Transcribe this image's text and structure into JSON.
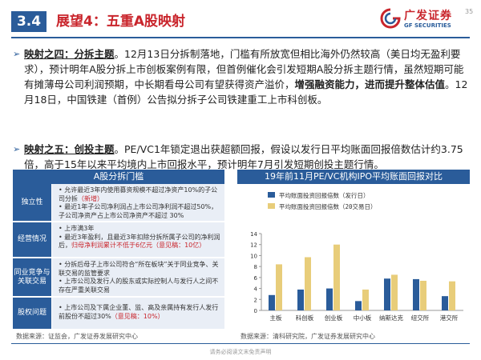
{
  "header": {
    "section_number": "3.4",
    "title": "展望4：五重A股映射",
    "logo_cn": "广发证券",
    "logo_en": "GF SECURITIES",
    "page_number": "35"
  },
  "paragraphs": [
    {
      "heading": "映射之四：分拆主题",
      "segments": [
        {
          "t": "。12月13日分拆制落地，门槛有所放宽但相比海外仍然较高（美日均无盈利要求），预计明年A股分拆上市创板案例有限，但首例催化会引发短期A股分拆主题行情，虽然短期可能有摊薄母公司利润预期，中长期看母公司有望获得资产溢价，",
          "b": false
        },
        {
          "t": "增强融资能力，进而提升整体估值",
          "b": true
        },
        {
          "t": "。12月18日，中国铁建（首例）公告拟分拆子公司铁建重工上市科创板。",
          "b": false
        }
      ]
    },
    {
      "heading": "映射之五：创投主题",
      "segments": [
        {
          "t": "。PE/VC1年锁定退出获超额回报，假设以发行日平均账面回报倍数估计约3.75倍，高于15年以来平均境内上市回报水平，预计明年7月引发短期创投主题行情。",
          "b": false
        }
      ]
    }
  ],
  "table": {
    "title": "A股分拆门槛",
    "rows": [
      {
        "label": "独立性",
        "lines": [
          [
            {
              "t": "• 允许最近3年内使用募资规模不超过净资产10%的子公司分拆",
              "r": false
            },
            {
              "t": "（新增）",
              "r": true
            }
          ],
          [
            {
              "t": "• 最近1年子公司净利润占上市公司净利润不超过50%，子公司净资产占上市公司净资产不超过 30%",
              "r": false
            }
          ]
        ]
      },
      {
        "label": "经营情况",
        "lines": [
          [
            {
              "t": "• 上市满3年",
              "r": false
            }
          ],
          [
            {
              "t": "• 最近3年盈利，且最近3年扣除分拆所属子公司的净利润后，",
              "r": false
            },
            {
              "t": "归母净利润累计不低于6亿元（意见稿：10亿）",
              "r": true
            }
          ]
        ]
      },
      {
        "label": "同业竞争与关联交易",
        "lines": [
          [
            {
              "t": "• 分拆后母子上市公司符合“所在板块”关于同业竞争、关联交易的监管要求",
              "r": false
            }
          ],
          [
            {
              "t": "• 上市公司及发行人的股东或实际控制人与发行人之间不存在严重关联交易",
              "r": false
            }
          ]
        ]
      },
      {
        "label": "股权问题",
        "lines": [
          [
            {
              "t": "• 上市公司及下属企业董、监、高及亲属持有发行人发行前股份不超过30%",
              "r": false
            },
            {
              "t": "（意见稿：10%）",
              "r": true
            }
          ]
        ]
      }
    ]
  },
  "chart_data": {
    "type": "bar",
    "title": "19年前11月PE/VC机构IPO平均账面回报对比",
    "categories": [
      "主板",
      "科创板",
      "创业板",
      "中小板",
      "纳斯达克",
      "纽交所",
      "港交所"
    ],
    "series": [
      {
        "name": "平均账面投资回报倍数（发行日）",
        "color": "#2a5c9a",
        "values": [
          2.8,
          3.8,
          4.0,
          1.7,
          5.8,
          5.7,
          2.6
        ]
      },
      {
        "name": "平均账面投资回报倍数（20交易日）",
        "color": "#e8cd7a",
        "values": [
          8.4,
          9.7,
          12.0,
          3.8,
          6.5,
          5.4,
          5.3
        ]
      }
    ],
    "ylim": [
      0,
      14
    ],
    "yticks": [
      0,
      2,
      4,
      6,
      8,
      10,
      12,
      14
    ],
    "legend": "top-left",
    "grid": false
  },
  "sources": {
    "left": "数据来源：证监会，广发证券发展研究中心",
    "right": "数据来源：清科研究院，广发证券发展研究中心"
  },
  "footer": "请务必阅读文末免责声明"
}
